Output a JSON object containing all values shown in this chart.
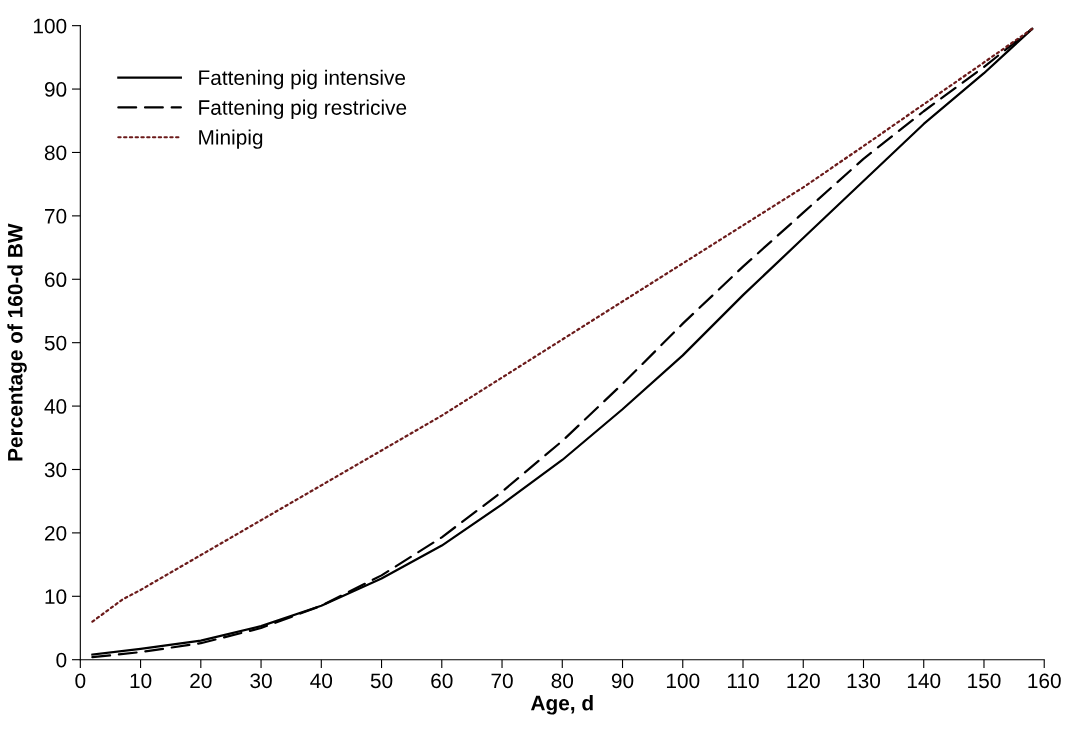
{
  "chart_data": {
    "type": "line",
    "xlabel": "Age, d",
    "ylabel": "Percentage of 160-d BW",
    "xlim": [
      0,
      160
    ],
    "ylim": [
      0,
      100
    ],
    "xticks": [
      0,
      10,
      20,
      30,
      40,
      50,
      60,
      70,
      80,
      90,
      100,
      110,
      120,
      130,
      140,
      150,
      160
    ],
    "yticks": [
      0,
      10,
      20,
      30,
      40,
      50,
      60,
      70,
      80,
      90,
      100
    ],
    "grid": false,
    "legend": "top left",
    "marker": "none",
    "series": [
      {
        "name": "Fattening pig intensive",
        "color": "#000000",
        "line_style": "solid",
        "x": [
          2,
          10,
          20,
          30,
          40,
          50,
          60,
          70,
          80,
          90,
          100,
          110,
          120,
          130,
          140,
          150,
          158
        ],
        "values": [
          0.8,
          1.7,
          3.0,
          5.3,
          8.5,
          12.8,
          18,
          24.5,
          31.5,
          39.5,
          48,
          57.5,
          66.5,
          75.5,
          84.5,
          92.5,
          99.5
        ]
      },
      {
        "name": "Fattening pig restricive",
        "color": "#000000",
        "line_style": "dashed",
        "x": [
          2,
          10,
          20,
          30,
          40,
          50,
          60,
          70,
          80,
          90,
          100,
          110,
          120,
          130,
          140,
          150,
          158
        ],
        "values": [
          0.4,
          1.2,
          2.6,
          5.0,
          8.5,
          13.3,
          19.3,
          26.5,
          34.5,
          43.5,
          53,
          62,
          70.5,
          79,
          86.5,
          93.5,
          99.5
        ]
      },
      {
        "name": "Minipig",
        "color": "#6b1a1a",
        "line_style": "dotted",
        "x": [
          2,
          7,
          10,
          20,
          30,
          40,
          50,
          60,
          70,
          80,
          90,
          100,
          110,
          120,
          130,
          140,
          150,
          158
        ],
        "values": [
          6,
          9.5,
          11,
          16.5,
          22,
          27.5,
          33,
          38.5,
          44.5,
          50.5,
          56.5,
          62.5,
          68.5,
          74.5,
          81,
          87.6,
          94.2,
          99.5
        ]
      }
    ]
  }
}
